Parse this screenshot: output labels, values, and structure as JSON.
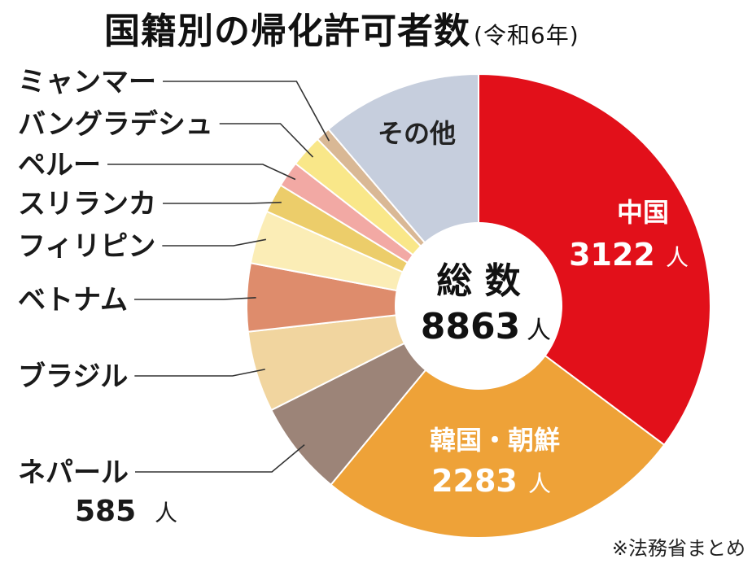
{
  "title": "国籍別の帰化許可者数",
  "subtitle": "(令和6年)",
  "center": {
    "label": "総 数",
    "total": "8863",
    "unit": "人"
  },
  "source_note": "※法務省まとめ",
  "chart_data": {
    "type": "pie",
    "variant": "donut",
    "title": "国籍別の帰化許可者数(令和6年)",
    "total": 8863,
    "unit": "人",
    "slices": [
      {
        "name": "中国",
        "value": 3122,
        "color": "#e2101a",
        "shown_value": "3122"
      },
      {
        "name": "韓国・朝鮮",
        "value": 2283,
        "color": "#eea238",
        "shown_value": "2283"
      },
      {
        "name": "ネパール",
        "value": 585,
        "color": "#9c8478",
        "shown_value": "585"
      },
      {
        "name": "ブラジル",
        "value": 500,
        "color": "#f1d59f"
      },
      {
        "name": "ベトナム",
        "value": 420,
        "color": "#de8c6c"
      },
      {
        "name": "フィリピン",
        "value": 330,
        "color": "#fbedb6"
      },
      {
        "name": "スリランカ",
        "value": 180,
        "color": "#eccd6a"
      },
      {
        "name": "ペルー",
        "value": 160,
        "color": "#f2a9a4"
      },
      {
        "name": "バングラデシュ",
        "value": 200,
        "color": "#f9e789"
      },
      {
        "name": "ミャンマー",
        "value": 90,
        "color": "#d9b895"
      },
      {
        "name": "その他",
        "value": 993,
        "color": "#c6cedd"
      }
    ]
  }
}
